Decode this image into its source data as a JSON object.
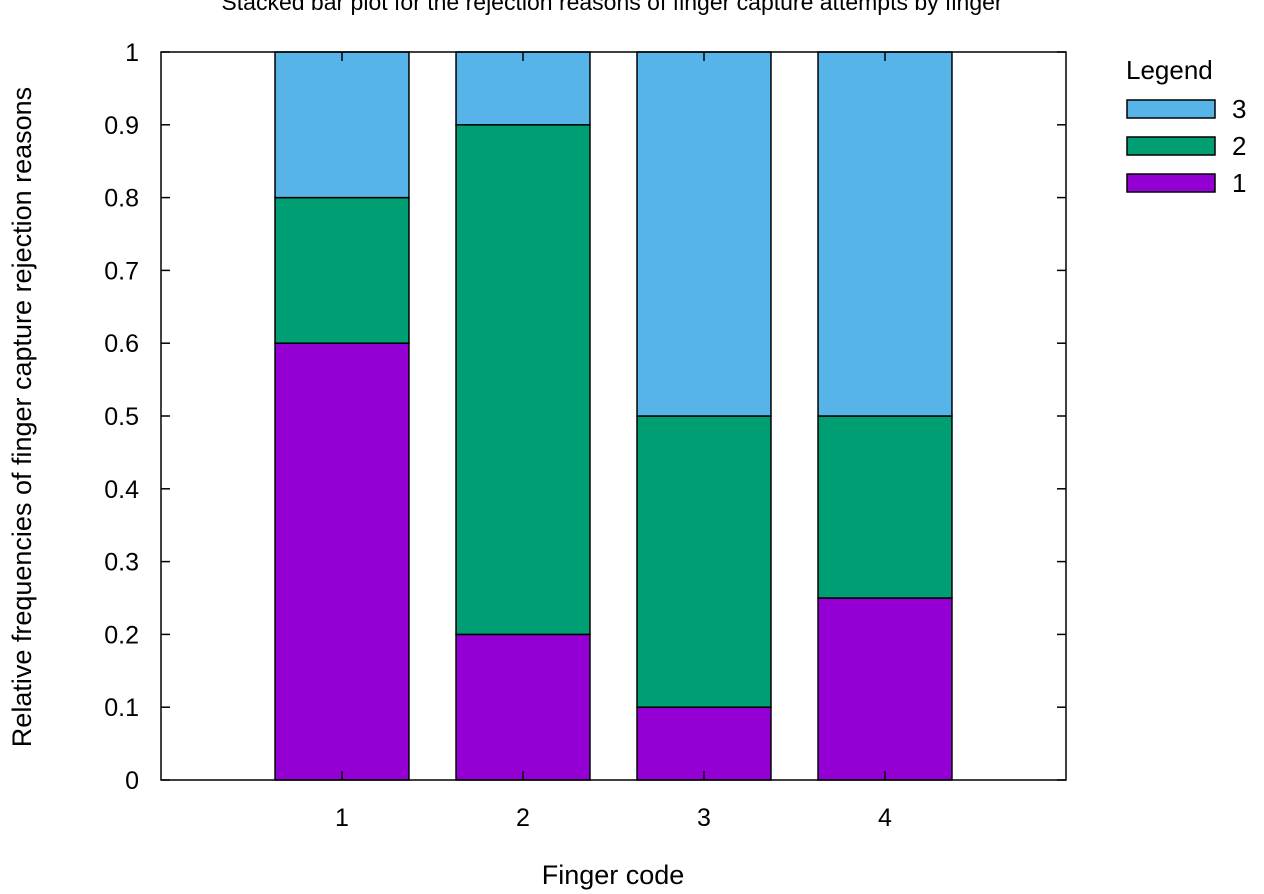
{
  "chart_data": {
    "type": "bar",
    "stacked": true,
    "title": "Stacked bar plot for the rejection reasons of finger capture attempts by finger",
    "xlabel": "Finger code",
    "ylabel": "Relative frequencies of finger capture rejection reasons",
    "categories": [
      "1",
      "2",
      "3",
      "4"
    ],
    "ylim": [
      0,
      1
    ],
    "yticks": [
      "0",
      "0.1",
      "0.2",
      "0.3",
      "0.4",
      "0.5",
      "0.6",
      "0.7",
      "0.8",
      "0.9",
      "1"
    ],
    "legend": {
      "title": "Legend",
      "position": "right"
    },
    "grid": false,
    "series": [
      {
        "name": "1",
        "color": "#9400d3",
        "values": [
          0.6,
          0.2,
          0.1,
          0.25
        ]
      },
      {
        "name": "2",
        "color": "#009e73",
        "values": [
          0.2,
          0.7,
          0.4,
          0.25
        ]
      },
      {
        "name": "3",
        "color": "#56b4e9",
        "values": [
          0.2,
          0.1,
          0.5,
          0.5
        ]
      }
    ]
  }
}
